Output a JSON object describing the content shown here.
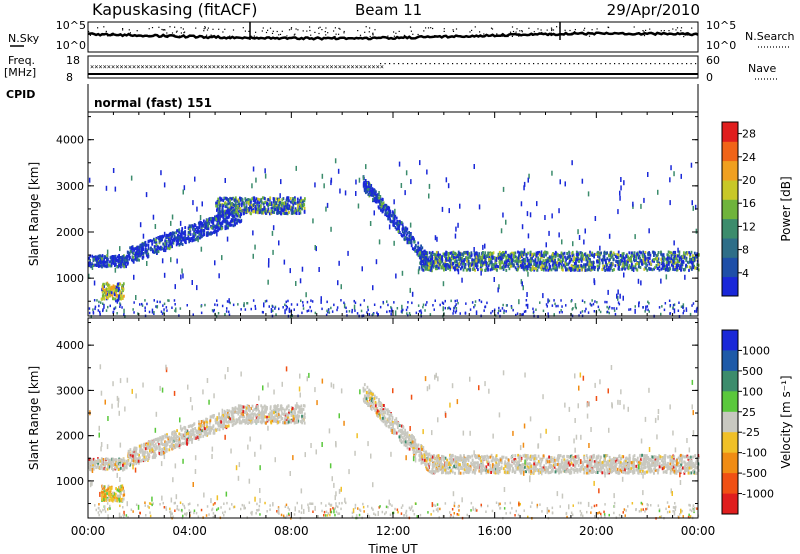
{
  "header": {
    "station": "Kapuskasing (fitACF)",
    "beam": "Beam 11",
    "date": "29/Apr/2010"
  },
  "strip_panels": {
    "nsky_label": "N.Sky",
    "nsearch_label": "N.Search",
    "noise_tick_top": "10^5",
    "noise_tick_bottom": "10^0",
    "freq_label": "Freq.",
    "freq_unit": "[MHz]",
    "freq_ticks": [
      "18",
      "8"
    ],
    "nave_label": "Nave",
    "nave_ticks": [
      "60",
      "0"
    ],
    "cpid_label": "CPID",
    "cpid_value": "normal (fast) 151"
  },
  "chart_data": [
    {
      "type": "heatmap",
      "title": "",
      "xlabel": "Time UT",
      "ylabel": "Slant Range [km]",
      "x_ticks": [
        "00:00",
        "04:00",
        "08:00",
        "12:00",
        "16:00",
        "20:00",
        "00:00"
      ],
      "xlim_hours": [
        0,
        24
      ],
      "y_ticks": [
        1000,
        2000,
        3000,
        4000
      ],
      "ylim": [
        180,
        4600
      ],
      "colorbar": {
        "label": "Power [dB]",
        "ticks": [
          4,
          8,
          12,
          16,
          20,
          24,
          28
        ],
        "range": [
          0,
          30
        ],
        "colors": [
          "#1a28d8",
          "#1e4fa8",
          "#2e6e88",
          "#3c8c6c",
          "#6fb43c",
          "#c8c828",
          "#f0a020",
          "#f06418",
          "#e01e1e"
        ]
      },
      "echo_regions": [
        {
          "start_hour": 0.0,
          "end_hour": 1.5,
          "range_center_km": 1400,
          "range_width_km": 250,
          "dominant": "blue"
        },
        {
          "start_hour": 0.5,
          "end_hour": 1.4,
          "range_center_km": 750,
          "range_width_km": 350,
          "dominant": "yellow"
        },
        {
          "start_hour": 1.5,
          "end_hour": 6.0,
          "range_center_km": 2100,
          "range_width_km": 350,
          "dominant": "blue"
        },
        {
          "start_hour": 5.0,
          "end_hour": 8.5,
          "range_center_km": 2600,
          "range_width_km": 350,
          "dominant": "green"
        },
        {
          "start_hour": 10.8,
          "end_hour": 13.5,
          "range_center_km": 2300,
          "range_width_km": 300,
          "dominant": "blue"
        },
        {
          "start_hour": 13.0,
          "end_hour": 24.0,
          "range_center_km": 1400,
          "range_width_km": 400,
          "dominant": "green"
        }
      ]
    },
    {
      "type": "heatmap",
      "title": "",
      "xlabel": "Time UT",
      "ylabel": "Slant Range [km]",
      "x_ticks": [
        "00:00",
        "04:00",
        "08:00",
        "12:00",
        "16:00",
        "20:00",
        "00:00"
      ],
      "xlim_hours": [
        0,
        24
      ],
      "y_ticks": [
        1000,
        2000,
        3000,
        4000
      ],
      "ylim": [
        180,
        4600
      ],
      "colorbar": {
        "label": "Velocity [m s⁻¹]",
        "ticks": [
          "1000",
          "500",
          "100",
          "25",
          "-25",
          "-100",
          "-500",
          "-1000"
        ],
        "colors": [
          "#1a28d8",
          "#1e5aa8",
          "#3c8c6c",
          "#5ac83c",
          "#c8c8c0",
          "#f0c028",
          "#f08c14",
          "#f05014",
          "#e01e1e"
        ]
      },
      "echo_regions": [
        {
          "start_hour": 0.0,
          "end_hour": 1.5,
          "range_center_km": 1400,
          "range_width_km": 250,
          "dominant": "grey"
        },
        {
          "start_hour": 0.5,
          "end_hour": 1.4,
          "range_center_km": 750,
          "range_width_km": 350,
          "dominant": "orange"
        },
        {
          "start_hour": 1.5,
          "end_hour": 8.5,
          "range_center_km": 2300,
          "range_width_km": 400,
          "dominant": "grey"
        },
        {
          "start_hour": 10.8,
          "end_hour": 24.0,
          "range_center_km": 1500,
          "range_width_km": 400,
          "dominant": "grey"
        }
      ]
    }
  ]
}
